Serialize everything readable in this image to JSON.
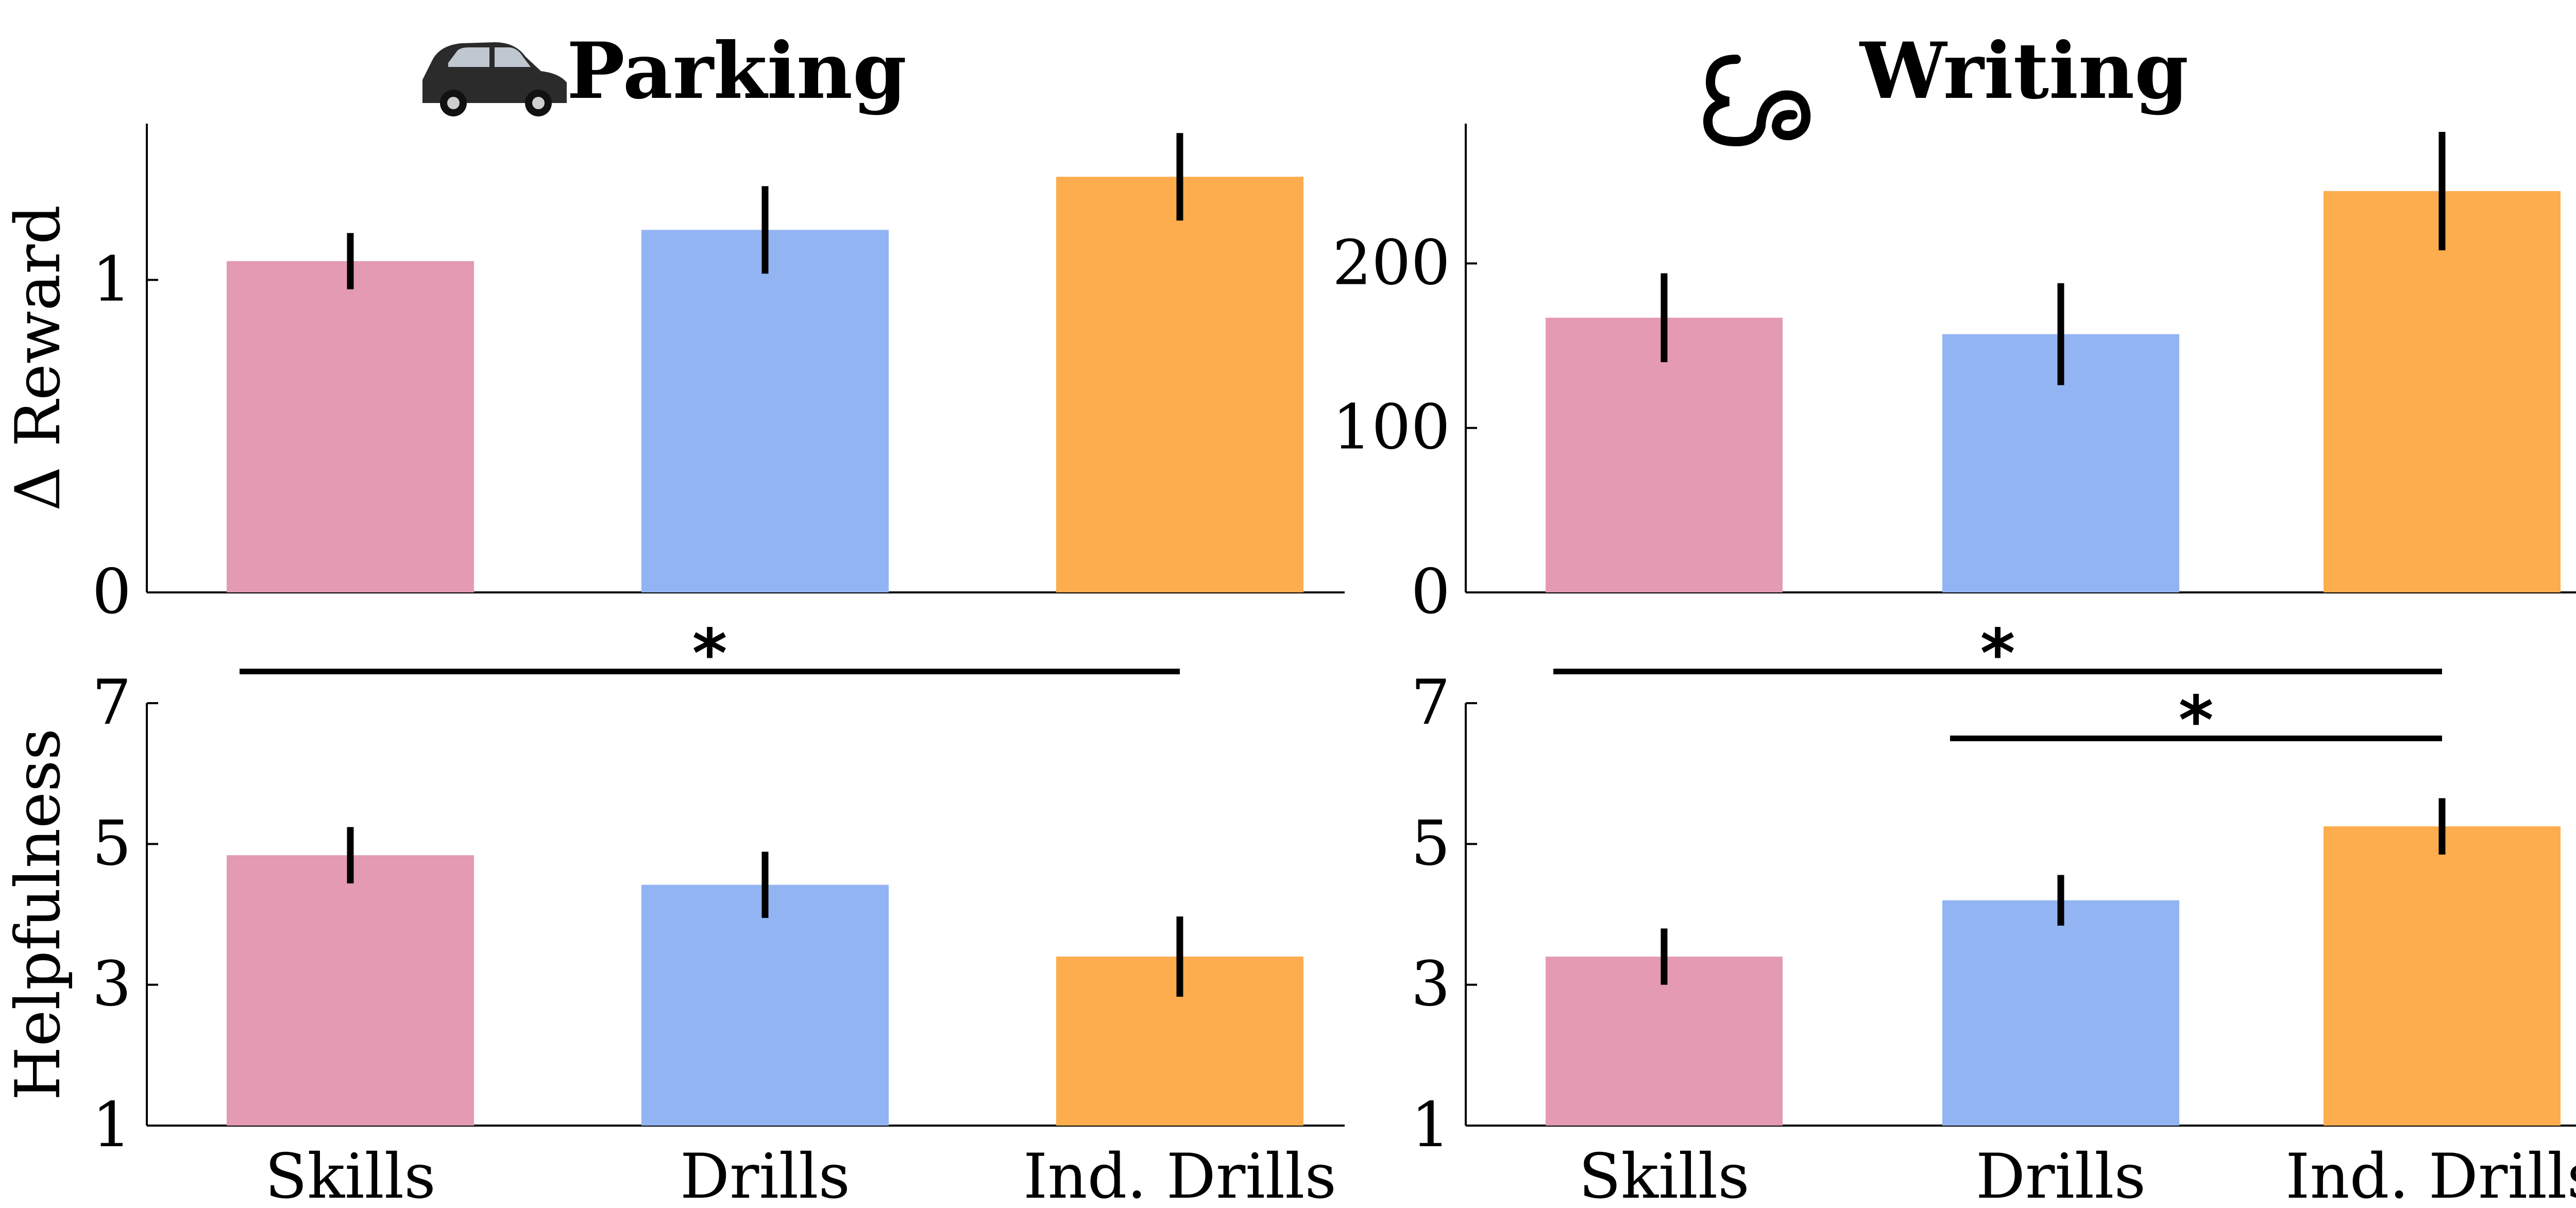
{
  "chart_data": [
    {
      "type": "bar",
      "panel": "parking-reward",
      "title": "Parking",
      "title_icon": "car-icon",
      "categories": [
        "Skills",
        "Drills",
        "Ind. Drills"
      ],
      "values": [
        1.06,
        1.16,
        1.33
      ],
      "errors": [
        0.09,
        0.14,
        0.14
      ],
      "colors": [
        "#e39ab2",
        "#92b4f2",
        "#fdac4e"
      ],
      "ylabel": "Δ Reward",
      "xlabel": "",
      "ylim": [
        0,
        1.5
      ],
      "yticks": [
        0,
        1
      ],
      "ytick_labels": [
        "0",
        "1"
      ],
      "show_category_labels": false,
      "significance": []
    },
    {
      "type": "bar",
      "panel": "writing-reward",
      "title": "Writing",
      "title_icon": "writing-icon",
      "categories": [
        "Skills",
        "Drills",
        "Ind. Drills"
      ],
      "values": [
        167,
        157,
        244
      ],
      "errors": [
        27,
        31,
        36
      ],
      "colors": [
        "#e39ab2",
        "#92b4f2",
        "#fdac4e"
      ],
      "ylabel": "",
      "xlabel": "",
      "ylim": [
        0,
        285
      ],
      "yticks": [
        0,
        100,
        200
      ],
      "ytick_labels": [
        "0",
        "100",
        "200"
      ],
      "show_category_labels": false,
      "significance": []
    },
    {
      "type": "bar",
      "panel": "parking-helpfulness",
      "title": "",
      "categories": [
        "Skills",
        "Drills",
        "Ind. Drills"
      ],
      "values": [
        4.84,
        4.42,
        3.4
      ],
      "errors": [
        0.4,
        0.47,
        0.57
      ],
      "colors": [
        "#e39ab2",
        "#92b4f2",
        "#fdac4e"
      ],
      "ylabel": "Helpfulness",
      "xlabel": "",
      "ylim": [
        1,
        7
      ],
      "yticks": [
        1,
        3,
        5,
        7
      ],
      "ytick_labels": [
        "1",
        "3",
        "5",
        "7"
      ],
      "show_category_labels": true,
      "significance": [
        {
          "from": 0,
          "to": 2,
          "level": 7.45,
          "label": "*"
        }
      ]
    },
    {
      "type": "bar",
      "panel": "writing-helpfulness",
      "title": "",
      "categories": [
        "Skills",
        "Drills",
        "Ind. Drills"
      ],
      "values": [
        3.4,
        4.2,
        5.25
      ],
      "errors": [
        0.4,
        0.36,
        0.4
      ],
      "colors": [
        "#e39ab2",
        "#92b4f2",
        "#fdac4e"
      ],
      "ylabel": "",
      "xlabel": "",
      "ylim": [
        1,
        7
      ],
      "yticks": [
        1,
        3,
        5,
        7
      ],
      "ytick_labels": [
        "1",
        "3",
        "5",
        "7"
      ],
      "show_category_labels": true,
      "significance": [
        {
          "from": 0,
          "to": 2,
          "level": 7.45,
          "label": "*"
        },
        {
          "from": 1,
          "to": 2,
          "level": 6.5,
          "label": "*"
        }
      ]
    }
  ]
}
